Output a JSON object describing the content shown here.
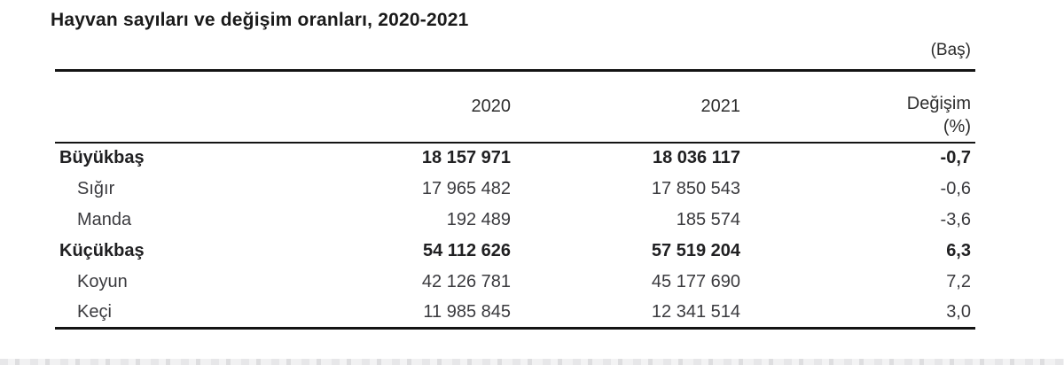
{
  "title": "Hayvan sayıları ve değişim oranları, 2020-2021",
  "unit_label": "(Baş)",
  "table": {
    "header": {
      "label_col": "",
      "col_2020": "2020",
      "col_2021": "2021",
      "change_line1": "Değişim",
      "change_line2": "(%)"
    },
    "rows": [
      {
        "label": "Büyükbaş",
        "v2020": "18 157 971",
        "v2021": "18 036 117",
        "change": "-0,7"
      },
      {
        "label": "Sığır",
        "v2020": "17 965 482",
        "v2021": "17 850 543",
        "change": "-0,6"
      },
      {
        "label": "Manda",
        "v2020": "192 489",
        "v2021": "185 574",
        "change": "-3,6"
      },
      {
        "label": "Küçükbaş",
        "v2020": "54 112 626",
        "v2021": "57 519 204",
        "change": "6,3"
      },
      {
        "label": "Koyun",
        "v2020": "42 126 781",
        "v2021": "45 177 690",
        "change": "7,2"
      },
      {
        "label": "Keçi",
        "v2020": "11 985 845",
        "v2021": "12 341 514",
        "change": "3,0"
      }
    ]
  }
}
